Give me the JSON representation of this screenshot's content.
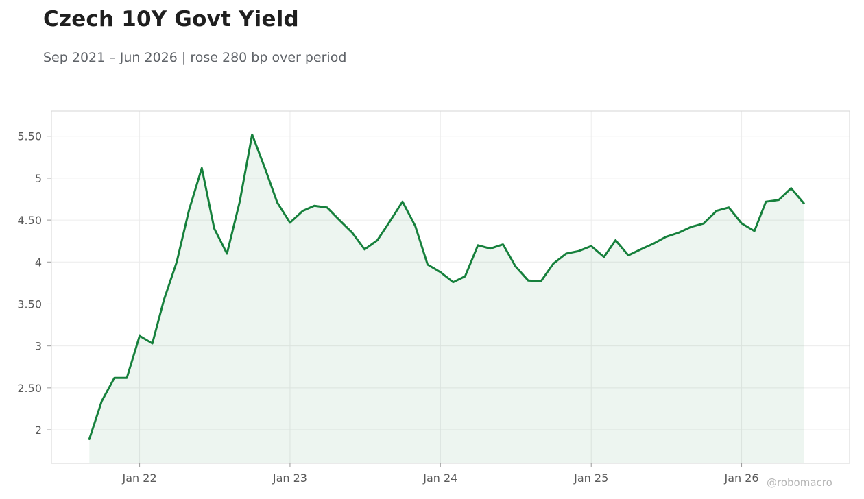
{
  "title": "Czech 10Y Govt Yield",
  "subtitle": "Sep 2021 – Jun 2026 | rose 280 bp over period",
  "watermark": "@robomacro",
  "colors": {
    "line": "#16803c",
    "fill": "#16803c",
    "grid": "#ececec",
    "axis": "#d6d6d6"
  },
  "chart_data": {
    "type": "area",
    "title": "Czech 10Y Govt Yield",
    "subtitle": "Sep 2021 – Jun 2026 | rose 280 bp over period",
    "xlabel": "",
    "ylabel": "",
    "ylim": [
      1.6,
      5.8
    ],
    "xlim": [
      "2021-06-01",
      "2026-09-20"
    ],
    "grid": true,
    "legend": "none",
    "y_ticks": [
      2,
      2.5,
      3,
      3.5,
      4,
      4.5,
      5,
      5.5
    ],
    "y_tick_labels": [
      "2",
      "2.50",
      "3",
      "3.50",
      "4",
      "4.50",
      "5",
      "5.50"
    ],
    "x_ticks": [
      "2022-01-01",
      "2023-01-01",
      "2024-01-01",
      "2025-01-01",
      "2026-01-01"
    ],
    "x_tick_labels": [
      "Jan 22",
      "Jan 23",
      "Jan 24",
      "Jan 25",
      "Jan 26"
    ],
    "series": [
      {
        "x": [
          "2021-09-01",
          "2021-10-01",
          "2021-11-01",
          "2021-12-01",
          "2022-01-01",
          "2022-02-01",
          "2022-03-01",
          "2022-04-01",
          "2022-05-01",
          "2022-06-01",
          "2022-07-01",
          "2022-08-01",
          "2022-09-01",
          "2022-10-01",
          "2022-11-01",
          "2022-12-01",
          "2023-01-01",
          "2023-02-01",
          "2023-03-01",
          "2023-04-01",
          "2023-05-01",
          "2023-06-01",
          "2023-07-01",
          "2023-08-01",
          "2023-09-01",
          "2023-10-01",
          "2023-11-01",
          "2023-12-01",
          "2024-01-01",
          "2024-02-01",
          "2024-03-01",
          "2024-04-01",
          "2024-05-01",
          "2024-06-01",
          "2024-07-01",
          "2024-08-01",
          "2024-09-01",
          "2024-10-01",
          "2024-11-01",
          "2024-12-01",
          "2025-01-01",
          "2025-02-01",
          "2025-03-01",
          "2025-04-01",
          "2025-05-01",
          "2025-06-01",
          "2025-07-01",
          "2025-08-01",
          "2025-09-01",
          "2025-10-01",
          "2025-11-01",
          "2025-12-01",
          "2026-01-01",
          "2026-02-01",
          "2026-03-01",
          "2026-04-01",
          "2026-05-01",
          "2026-06-01"
        ],
        "values": [
          1.89,
          2.34,
          2.62,
          2.62,
          3.12,
          3.03,
          3.55,
          4.0,
          4.62,
          5.12,
          4.4,
          4.1,
          4.72,
          5.52,
          5.12,
          4.71,
          4.47,
          4.61,
          4.67,
          4.65,
          4.5,
          4.35,
          4.15,
          4.26,
          4.49,
          4.72,
          4.43,
          3.97,
          3.88,
          3.76,
          3.83,
          4.2,
          4.16,
          4.21,
          3.95,
          3.78,
          3.77,
          3.98,
          4.1,
          4.13,
          4.19,
          4.06,
          4.26,
          4.08,
          4.15,
          4.22,
          4.3,
          4.35,
          4.42,
          4.46,
          4.61,
          4.65,
          4.46,
          4.37,
          4.72,
          4.74,
          4.88,
          4.7
        ]
      }
    ]
  }
}
